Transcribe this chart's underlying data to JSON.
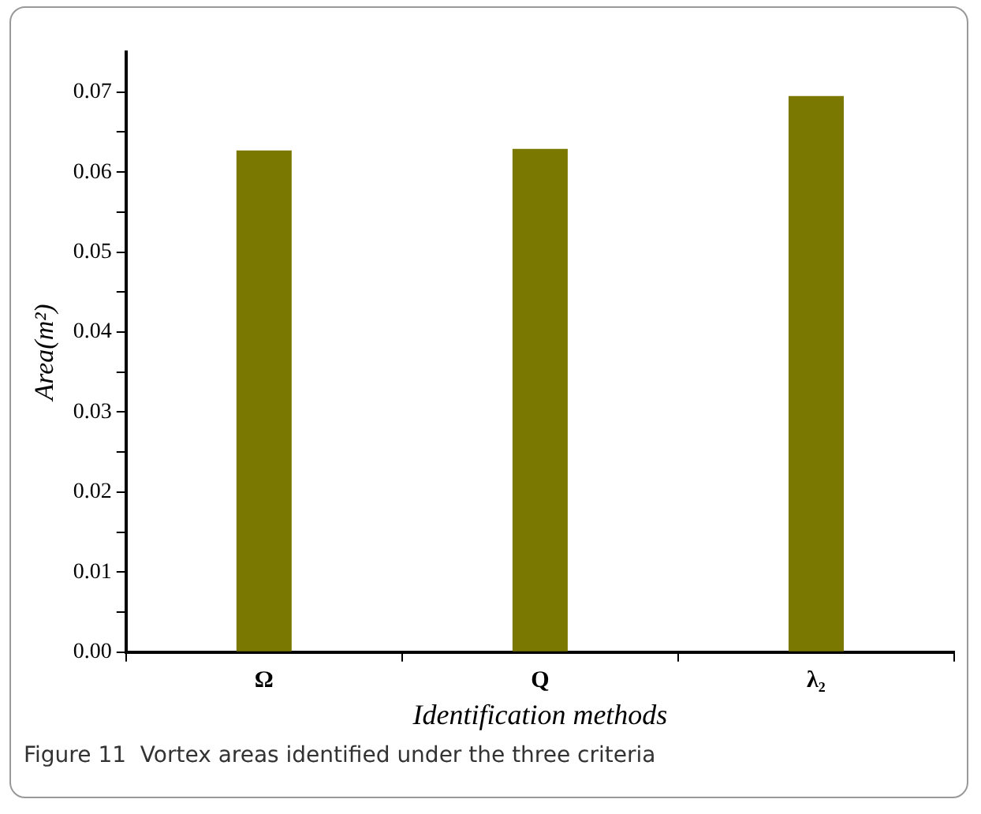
{
  "chart_data": {
    "type": "bar",
    "xlabel": "Identification methods",
    "ylabel": "Area(m²)",
    "categories": [
      "Ω",
      "Q",
      "λ₂"
    ],
    "values": [
      0.0627,
      0.0629,
      0.0695
    ],
    "color": "#7a7800",
    "ylim": [
      0,
      0.075
    ],
    "yticks": [
      {
        "value": 0,
        "label": "0.00"
      },
      {
        "value": 0.005,
        "label": null
      },
      {
        "value": 0.01,
        "label": "0.01"
      },
      {
        "value": 0.015,
        "label": null
      },
      {
        "value": 0.02,
        "label": "0.02"
      },
      {
        "value": 0.025,
        "label": null
      },
      {
        "value": 0.03,
        "label": "0.03"
      },
      {
        "value": 0.035,
        "label": null
      },
      {
        "value": 0.04,
        "label": "0.04"
      },
      {
        "value": 0.045,
        "label": null
      },
      {
        "value": 0.05,
        "label": "0.05"
      },
      {
        "value": 0.055,
        "label": null
      },
      {
        "value": 0.06,
        "label": "0.06"
      },
      {
        "value": 0.065,
        "label": null
      },
      {
        "value": 0.07,
        "label": "0.07"
      }
    ],
    "grid": false,
    "legend": false,
    "annotations": [
      "Figure 11  Vortex areas identified under the three criteria"
    ]
  }
}
